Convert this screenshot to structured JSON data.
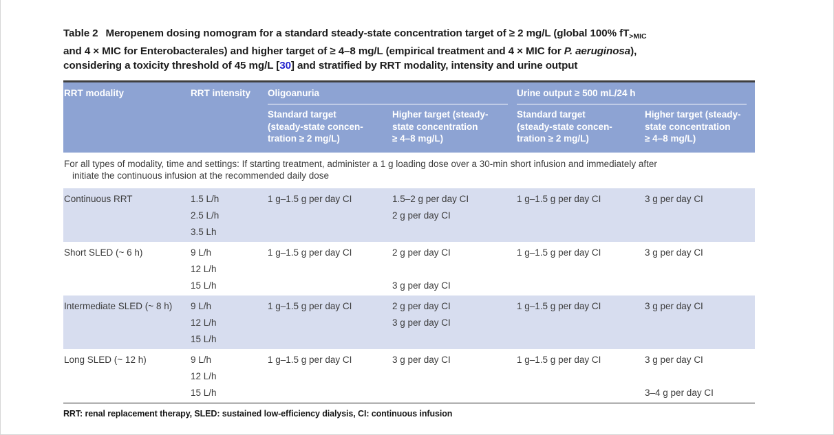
{
  "colors": {
    "header_bg": "#8da3d3",
    "stripe_bg": "#d7ddef",
    "link_color": "#2323cd",
    "top_border": "#3f3f3f",
    "rule_color": "#1c1c1c",
    "text_dark": "#3b3b3b",
    "caption_color": "#1c1c1c",
    "frame_color": "#d6d6d6"
  },
  "caption": {
    "lines": [
      [
        {
          "text": "Table 2",
          "style": "label"
        },
        {
          "text": "Meropenem dosing nomogram for a standard steady-state concentration target of ≥ 2 mg/L (global 100% fT",
          "style": "plain"
        },
        {
          "text": ">MIC",
          "style": "sub"
        }
      ],
      [
        {
          "text": "and 4 × MIC for Enterobacterales) and higher target of ≥ 4–8 mg/L (empirical treatment and 4 × MIC for ",
          "style": "plain"
        },
        {
          "text": "P. aeruginosa",
          "style": "italic"
        },
        {
          "text": "),",
          "style": "plain"
        }
      ],
      [
        {
          "text": "considering a toxicity threshold of 45 mg/L [",
          "style": "plain"
        },
        {
          "text": "30",
          "style": "link"
        },
        {
          "text": "] and stratified by RRT modality, intensity and urine output",
          "style": "plain"
        }
      ]
    ]
  },
  "table": {
    "headers": {
      "modality": "RRT modality",
      "intensity": "RRT intensity",
      "group_oligoanuria": "Oligoanuria",
      "group_urine": "Urine output ≥ 500 mL/24 h"
    },
    "subheaders": [
      {
        "lines": [
          "Standard target",
          "(steady-state concen-",
          "tration ≥ 2 mg/L)"
        ]
      },
      {
        "lines": [
          "Higher target (steady-",
          "state concentration",
          "≥ 4–8 mg/L)"
        ]
      },
      {
        "lines": [
          "Standard target",
          "(steady-state concen-",
          "tration ≥ 2 mg/L)"
        ]
      },
      {
        "lines": [
          "Higher target (steady-",
          "state concentration",
          "≥ 4–8 mg/L)"
        ]
      }
    ],
    "note_lines": [
      "For all types of modality, time and settings: If starting treatment, administer a 1 g loading dose over a 30-min short infusion and immediately after",
      "initiate the continuous infusion at the recommended daily dose"
    ],
    "rows": [
      {
        "modality": "Continuous RRT",
        "intensity": [
          "1.5 L/h",
          "2.5 L/h",
          "3.5 Lh"
        ],
        "oligoanuria_standard": [
          "1 g–1.5 g per day CI"
        ],
        "oligoanuria_higher": [
          "1.5–2 g per day CI",
          "2 g per day CI"
        ],
        "urine_standard": [
          "1 g–1.5 g per day CI"
        ],
        "urine_higher": [
          "3 g per day CI"
        ],
        "striped": true
      },
      {
        "modality": "Short SLED (~ 6 h)",
        "intensity": [
          "9 L/h",
          "12 L/h",
          "15 L/h"
        ],
        "oligoanuria_standard": [
          "1 g–1.5 g per day CI"
        ],
        "oligoanuria_higher": [
          "2 g per day CI",
          "",
          "3 g per day CI"
        ],
        "urine_standard": [
          "1 g–1.5 g per day CI"
        ],
        "urine_higher": [
          "3 g per day CI"
        ],
        "striped": false
      },
      {
        "modality": "Intermediate SLED (~ 8 h)",
        "intensity": [
          "9 L/h",
          "12 L/h",
          "15 L/h"
        ],
        "oligoanuria_standard": [
          "1 g–1.5 g per day CI"
        ],
        "oligoanuria_higher": [
          "2 g per day CI",
          "3 g per day CI"
        ],
        "urine_standard": [
          "1 g–1.5 g per day CI"
        ],
        "urine_higher": [
          "3 g per day CI"
        ],
        "striped": true
      },
      {
        "modality": "Long SLED (~ 12 h)",
        "intensity": [
          "9 L/h",
          "12 L/h",
          "15 L/h"
        ],
        "oligoanuria_standard": [
          "1 g–1.5 g per day CI"
        ],
        "oligoanuria_higher": [
          "3 g per day CI"
        ],
        "urine_standard": [
          "1 g–1.5 g per day CI"
        ],
        "urine_higher": [
          "3 g per day CI",
          "",
          "3–4 g per day CI"
        ],
        "striped": false
      }
    ]
  },
  "footnote": "RRT: renal replacement therapy, SLED: sustained low-efficiency dialysis, CI: continuous infusion"
}
